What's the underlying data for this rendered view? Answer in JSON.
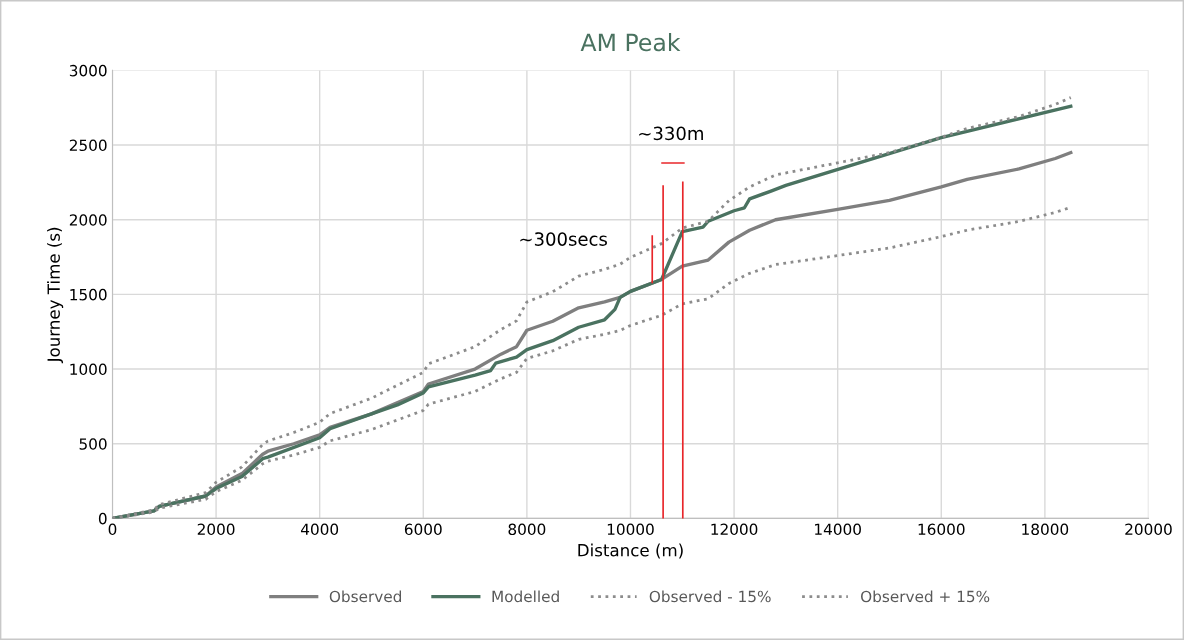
{
  "chart_data": {
    "type": "line",
    "title": "AM Peak",
    "xlabel": "Distance (m)",
    "ylabel": "Journey Time (s)",
    "xlim": [
      0,
      20000
    ],
    "xticks": [
      0,
      2000,
      4000,
      6000,
      8000,
      10000,
      12000,
      14000,
      16000,
      18000,
      20000
    ],
    "ylim": [
      0,
      3000
    ],
    "yticks": [
      0,
      500,
      1000,
      1500,
      2000,
      2500,
      3000
    ],
    "grid": true,
    "legend": "bottom",
    "series": [
      {
        "name": "Observed",
        "color": "#7f7f7f",
        "line_style": "solid",
        "x": [
          0,
          800,
          900,
          1800,
          2000,
          2500,
          2900,
          3000,
          3500,
          4000,
          4200,
          5000,
          6000,
          6100,
          7000,
          7500,
          7800,
          8000,
          8500,
          9000,
          9500,
          9800,
          10000,
          10600,
          11000,
          11500,
          11900,
          12300,
          12800,
          14000,
          15000,
          16000,
          16500,
          17500,
          18200,
          18500
        ],
        "values": [
          0,
          50,
          80,
          150,
          210,
          300,
          430,
          450,
          500,
          560,
          610,
          700,
          850,
          900,
          1000,
          1100,
          1150,
          1260,
          1320,
          1410,
          1450,
          1480,
          1520,
          1600,
          1690,
          1730,
          1850,
          1930,
          2000,
          2070,
          2130,
          2220,
          2270,
          2340,
          2410,
          2450
        ]
      },
      {
        "name": "Modelled",
        "color": "#4a7260",
        "line_style": "solid",
        "x": [
          0,
          800,
          900,
          1800,
          2000,
          2500,
          2900,
          3000,
          4000,
          4200,
          5000,
          5500,
          6000,
          6100,
          7000,
          7300,
          7400,
          7800,
          8000,
          8500,
          9000,
          9500,
          9700,
          9800,
          10000,
          10600,
          11000,
          11400,
          11500,
          12000,
          12200,
          12300,
          12700,
          13000,
          16000,
          18500
        ],
        "values": [
          0,
          50,
          80,
          150,
          200,
          280,
          400,
          410,
          540,
          600,
          700,
          760,
          840,
          880,
          960,
          990,
          1040,
          1080,
          1130,
          1190,
          1280,
          1330,
          1400,
          1480,
          1520,
          1600,
          1920,
          1950,
          1990,
          2060,
          2080,
          2140,
          2190,
          2230,
          2550,
          2760
        ]
      },
      {
        "name": "Observed - 15%",
        "color": "#8c8c8c",
        "line_style": "dotted",
        "x": [
          0,
          800,
          900,
          1800,
          2000,
          2500,
          2900,
          3000,
          3500,
          4000,
          4200,
          5000,
          6000,
          6100,
          7000,
          7500,
          7800,
          8000,
          8500,
          9000,
          9500,
          9800,
          10000,
          10600,
          11000,
          11500,
          11900,
          12300,
          12800,
          14000,
          15000,
          16000,
          16500,
          17500,
          18200,
          18500
        ],
        "values": [
          0,
          43,
          68,
          128,
          179,
          255,
          366,
          383,
          425,
          476,
          519,
          595,
          723,
          765,
          850,
          935,
          978,
          1071,
          1122,
          1199,
          1233,
          1258,
          1292,
          1360,
          1437,
          1471,
          1573,
          1641,
          1700,
          1760,
          1811,
          1887,
          1930,
          1989,
          2049,
          2083
        ]
      },
      {
        "name": "Observed + 15%",
        "color": "#8c8c8c",
        "line_style": "dotted",
        "x": [
          0,
          800,
          900,
          1800,
          2000,
          2500,
          2900,
          3000,
          3500,
          4000,
          4200,
          5000,
          6000,
          6100,
          7000,
          7500,
          7800,
          8000,
          8500,
          9000,
          9500,
          9800,
          10000,
          10600,
          11000,
          11500,
          11900,
          12300,
          12800,
          14000,
          15000,
          16000,
          16500,
          17500,
          18200,
          18500
        ],
        "values": [
          0,
          58,
          92,
          173,
          242,
          345,
          495,
          518,
          575,
          644,
          702,
          805,
          978,
          1035,
          1150,
          1265,
          1323,
          1449,
          1518,
          1622,
          1668,
          1702,
          1748,
          1840,
          1944,
          1990,
          2128,
          2220,
          2300,
          2381,
          2450,
          2553,
          2611,
          2691,
          2772,
          2818
        ]
      },
      {
        "color": "#e8262a",
        "line_style": "solid",
        "x": [
          10630,
          10630
        ],
        "values": [
          0,
          2225
        ]
      },
      {
        "color": "#e8262a",
        "line_style": "solid",
        "x": [
          11010,
          11010
        ],
        "values": [
          0,
          2250
        ]
      },
      {
        "color": "#e8262a",
        "line_style": "solid",
        "x": [
          10420,
          10420
        ],
        "values": [
          1580,
          1890
        ]
      },
      {
        "color": "#e8262a",
        "line_style": "solid",
        "x": [
          10610,
          11030
        ],
        "values": [
          2380,
          2380
        ]
      }
    ],
    "annotations": [
      "~300secs",
      "~330m"
    ]
  }
}
